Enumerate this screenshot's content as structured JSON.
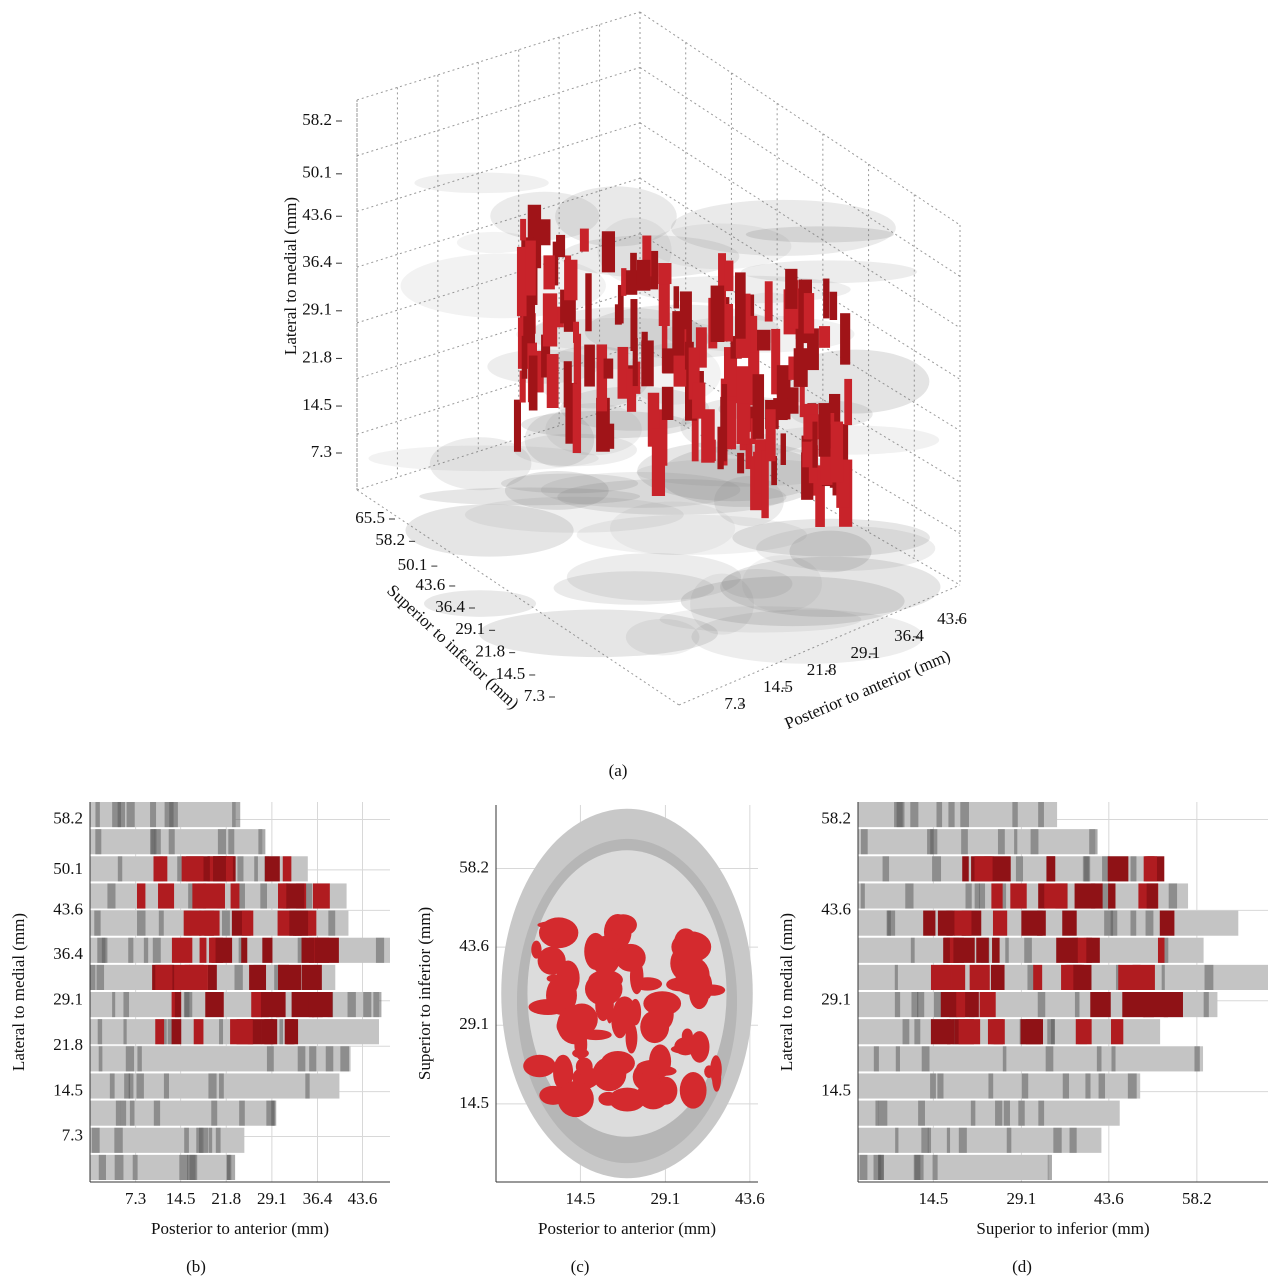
{
  "chart_data": [
    {
      "type": "volume3d",
      "caption": "(a)",
      "zlabel": "Lateral to medial (mm)",
      "zticks": [
        7.3,
        14.5,
        21.8,
        29.1,
        36.4,
        43.6,
        50.1,
        58.2
      ],
      "ylabel": "Superior to inferior (mm)",
      "yticks": [
        7.3,
        14.5,
        21.8,
        29.1,
        36.4,
        43.6,
        50.1,
        58.2,
        65.5
      ],
      "xlabel": "Posterior to anterior (mm)",
      "xticks": [
        7.3,
        14.5,
        21.8,
        29.1,
        36.4,
        43.6
      ]
    },
    {
      "type": "projection",
      "caption": "(b)",
      "xlabel": "Posterior to anterior (mm)",
      "ylabel": "Lateral to medial (mm)",
      "xlim": [
        0,
        48
      ],
      "ylim": [
        0,
        61
      ],
      "xticks": [
        7.3,
        14.5,
        21.8,
        29.1,
        36.4,
        43.6
      ],
      "yticks": [
        7.3,
        14.5,
        21.8,
        29.1,
        36.4,
        43.6,
        50.1,
        58.2
      ]
    },
    {
      "type": "projection",
      "caption": "(c)",
      "xlabel": "Posterior to anterior (mm)",
      "ylabel": "Superior to inferior (mm)",
      "xlim": [
        0,
        45
      ],
      "ylim": [
        0,
        70
      ],
      "xticks": [
        14.5,
        29.1,
        43.6
      ],
      "yticks": [
        14.5,
        29.1,
        43.6,
        58.2
      ]
    },
    {
      "type": "projection",
      "caption": "(d)",
      "xlabel": "Superior to inferior (mm)",
      "ylabel": "Lateral to medial (mm)",
      "xlim": [
        2,
        70
      ],
      "ylim": [
        0,
        61
      ],
      "xticks": [
        14.5,
        29.1,
        43.6,
        58.2
      ],
      "yticks": [
        14.5,
        29.1,
        43.6,
        58.2
      ]
    }
  ]
}
